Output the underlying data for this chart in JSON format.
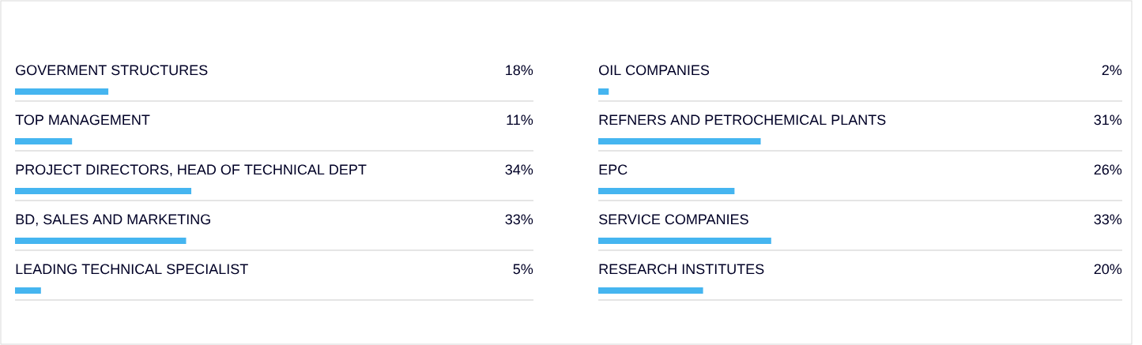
{
  "chart_data": [
    {
      "type": "bar",
      "orientation": "horizontal",
      "categories": [
        "GOVERMENT STRUCTURES",
        "TOP MANAGEMENT",
        "PROJECT DIRECTORS, HEAD OF TECHNICAL DEPT",
        "BD, SALES AND MARKETING",
        "LEADING TECHNICAL SPECIALIST"
      ],
      "values": [
        18,
        11,
        34,
        33,
        5
      ],
      "value_labels": [
        "18%",
        "11%",
        "34%",
        "33%",
        "5%"
      ],
      "color": "#45b5f0",
      "xlim": [
        0,
        100
      ]
    },
    {
      "type": "bar",
      "orientation": "horizontal",
      "categories": [
        "OIL COMPANIES",
        "REFNERS AND PETROCHEMICAL PLANTS",
        "EPC",
        "SERVICE COMPANIES",
        "RESEARCH INSTITUTES"
      ],
      "values": [
        2,
        31,
        26,
        33,
        20
      ],
      "value_labels": [
        "2%",
        "31%",
        "26%",
        "33%",
        "20%"
      ],
      "color": "#45b5f0",
      "xlim": [
        0,
        100
      ]
    }
  ]
}
